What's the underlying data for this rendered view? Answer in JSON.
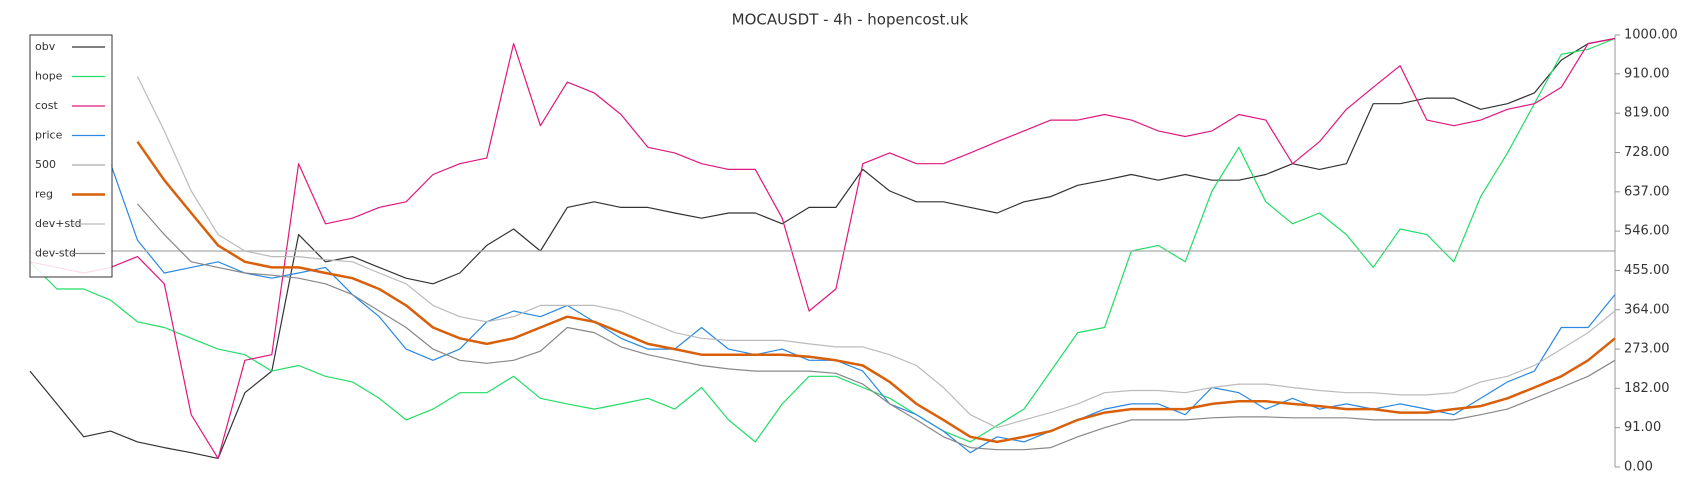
{
  "chart_data": {
    "type": "line",
    "title": "MOCAUSDT - 4h - hopencost.uk",
    "ylim": [
      0,
      1000
    ],
    "yticks": [
      {
        "value": 0,
        "label": "0.00"
      },
      {
        "value": 91,
        "label": "91.00"
      },
      {
        "value": 182,
        "label": "182.00"
      },
      {
        "value": 273,
        "label": "273.00"
      },
      {
        "value": 364,
        "label": "364.00"
      },
      {
        "value": 455,
        "label": "455.00"
      },
      {
        "value": 546,
        "label": "546.00"
      },
      {
        "value": 637,
        "label": "637.00"
      },
      {
        "value": 728,
        "label": "728.00"
      },
      {
        "value": 819,
        "label": "819.00"
      },
      {
        "value": 910,
        "label": "910.00"
      },
      {
        "value": 1000,
        "label": "1000.00"
      }
    ],
    "legend": "upper left",
    "series": [
      {
        "name": "obv",
        "color": "#333333",
        "values": [
          222,
          146,
          70,
          83,
          58,
          45,
          33,
          20,
          172,
          222,
          538,
          475,
          487,
          462,
          437,
          424,
          449,
          513,
          551,
          500,
          601,
          614,
          601,
          601,
          588,
          576,
          588,
          588,
          563,
          601,
          601,
          689,
          639,
          614,
          614,
          601,
          588,
          614,
          626,
          652,
          664,
          677,
          664,
          677,
          664,
          664,
          677,
          702,
          689,
          702,
          841,
          841,
          854,
          854,
          828,
          841,
          866,
          942,
          980,
          992
        ]
      },
      {
        "name": "hope",
        "color": "#22dd66",
        "values": [
          475,
          412,
          412,
          386,
          336,
          323,
          298,
          273,
          260,
          222,
          235,
          210,
          197,
          159,
          109,
          134,
          172,
          172,
          210,
          159,
          146,
          134,
          146,
          159,
          134,
          184,
          109,
          58,
          146,
          210,
          210,
          184,
          159,
          121,
          83,
          58,
          96,
          134,
          222,
          311,
          323,
          500,
          513,
          475,
          639,
          740,
          614,
          563,
          588,
          538,
          462,
          551,
          538,
          475,
          626,
          727,
          841,
          955,
          967,
          992
        ]
      },
      {
        "name": "cost",
        "color": "#e0177d",
        "values": [
          475,
          462,
          449,
          462,
          487,
          424,
          121,
          20,
          247,
          260,
          702,
          563,
          576,
          601,
          614,
          677,
          702,
          715,
          980,
          790,
          891,
          866,
          816,
          740,
          727,
          702,
          689,
          689,
          576,
          361,
          412,
          702,
          727,
          702,
          702,
          727,
          753,
          778,
          803,
          803,
          816,
          803,
          778,
          765,
          778,
          816,
          803,
          702,
          753,
          828,
          879,
          929,
          803,
          790,
          803,
          828,
          841,
          879,
          980,
          992
        ]
      },
      {
        "name": "price",
        "color": "#2a88e0",
        "values": [
          null,
          null,
          null,
          702,
          525,
          449,
          462,
          475,
          449,
          437,
          449,
          462,
          399,
          348,
          273,
          247,
          273,
          336,
          361,
          348,
          374,
          336,
          298,
          273,
          273,
          323,
          273,
          260,
          273,
          247,
          247,
          222,
          146,
          121,
          83,
          33,
          70,
          58,
          83,
          109,
          134,
          146,
          146,
          121,
          184,
          172,
          134,
          159,
          134,
          146,
          134,
          146,
          134,
          121,
          159,
          197,
          222,
          323,
          323,
          399
        ]
      },
      {
        "name": "500",
        "color": "#aaaaaa",
        "hline": 500
      },
      {
        "name": "reg",
        "color": "#d9600a",
        "width": 2.5,
        "values": [
          null,
          null,
          null,
          null,
          753,
          664,
          588,
          513,
          475,
          462,
          462,
          449,
          437,
          412,
          374,
          323,
          298,
          285,
          298,
          323,
          348,
          336,
          311,
          285,
          273,
          260,
          260,
          260,
          260,
          255,
          247,
          235,
          197,
          146,
          109,
          70,
          58,
          70,
          83,
          109,
          126,
          134,
          134,
          134,
          146,
          152,
          152,
          146,
          141,
          134,
          134,
          126,
          126,
          134,
          141,
          159,
          184,
          210,
          247,
          298
        ]
      },
      {
        "name": "dev+std",
        "color": "#bbbbbb",
        "values": [
          null,
          null,
          null,
          null,
          904,
          778,
          639,
          538,
          500,
          487,
          487,
          480,
          475,
          449,
          424,
          374,
          348,
          336,
          348,
          374,
          374,
          374,
          361,
          336,
          311,
          298,
          293,
          293,
          293,
          285,
          278,
          278,
          260,
          235,
          184,
          121,
          91,
          109,
          126,
          146,
          172,
          177,
          177,
          172,
          184,
          192,
          192,
          184,
          177,
          172,
          172,
          167,
          167,
          172,
          197,
          210,
          235,
          273,
          311,
          361
        ]
      },
      {
        "name": "dev-std",
        "color": "#888888",
        "values": [
          null,
          null,
          null,
          null,
          609,
          538,
          475,
          462,
          449,
          444,
          437,
          424,
          399,
          361,
          323,
          273,
          247,
          240,
          247,
          268,
          323,
          311,
          278,
          260,
          247,
          235,
          227,
          222,
          222,
          222,
          217,
          192,
          146,
          109,
          70,
          45,
          40,
          40,
          45,
          70,
          91,
          109,
          109,
          109,
          114,
          116,
          116,
          114,
          114,
          114,
          109,
          109,
          109,
          109,
          121,
          134,
          159,
          184,
          210,
          247
        ]
      }
    ]
  }
}
